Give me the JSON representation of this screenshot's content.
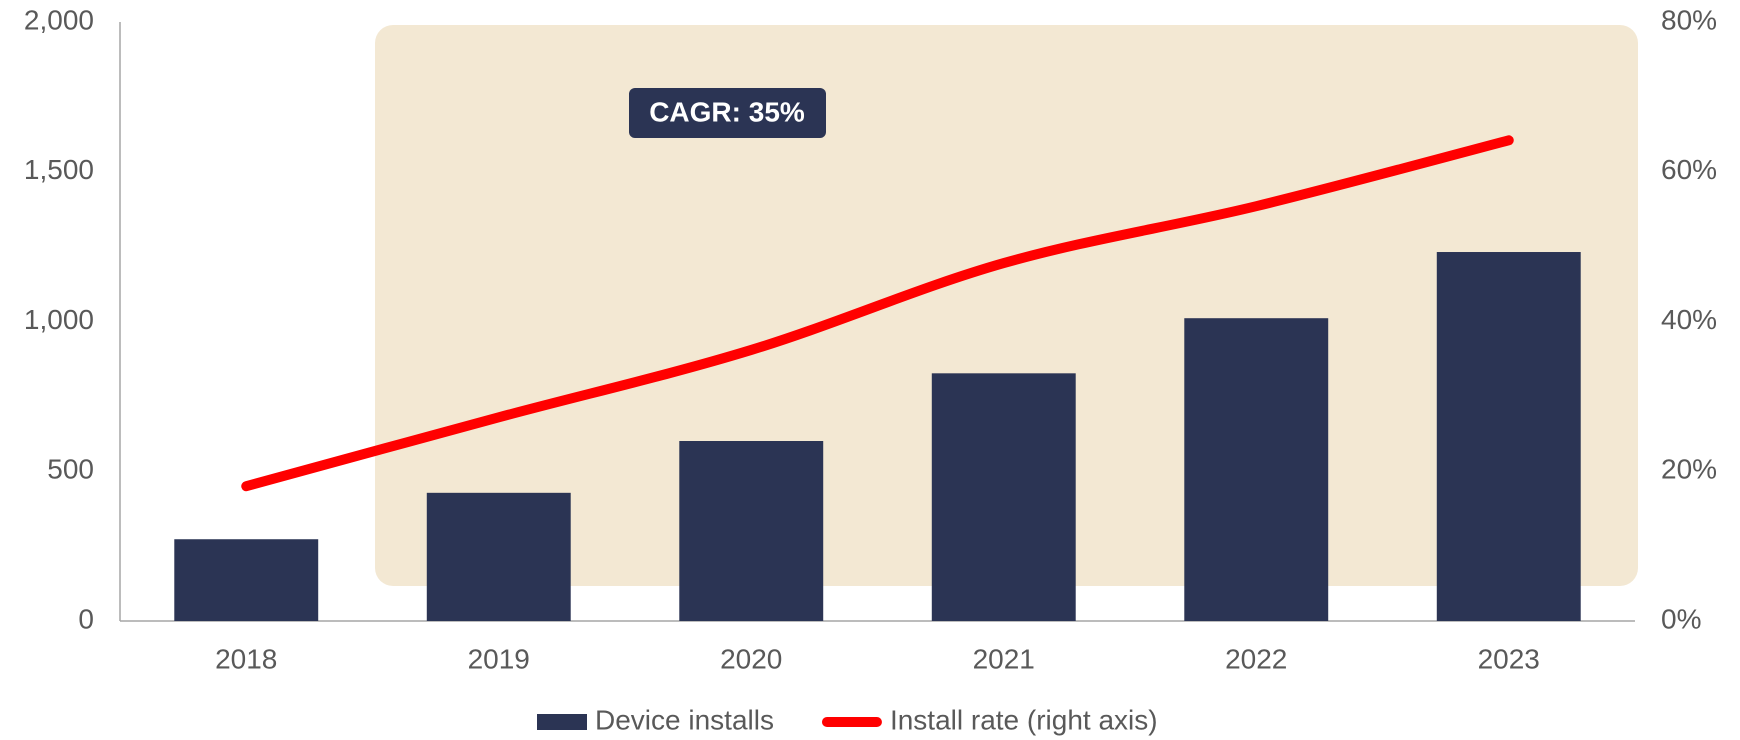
{
  "chart_data": {
    "type": "bar",
    "annotation": "CAGR: 35%",
    "categories": [
      "2018",
      "2019",
      "2020",
      "2021",
      "2022",
      "2023"
    ],
    "series": [
      {
        "name": "Device installs",
        "color": "#2b3454",
        "type": "bar",
        "values": [
          273,
          428,
          601,
          827,
          1011,
          1232
        ]
      },
      {
        "name": "Install rate (right axis)",
        "color": "#ff0000",
        "type": "line",
        "axis": "y2",
        "values": [
          18,
          27.2,
          36.2,
          47.8,
          55.4,
          64.2
        ]
      }
    ],
    "ylim": [
      0,
      2000
    ],
    "yticks": [
      0,
      500,
      {
        "value": 1000,
        "label": "1,000"
      },
      {
        "value": 1500,
        "label": "1,500"
      },
      {
        "value": 2000,
        "label": "2,000"
      }
    ],
    "y2lim": [
      0,
      80
    ],
    "y2ticks": [
      {
        "value": 0,
        "label": "0%"
      },
      {
        "value": 20,
        "label": "20%"
      },
      {
        "value": 40,
        "label": "40%"
      },
      {
        "value": 60,
        "label": "60%"
      },
      {
        "value": 80,
        "label": "80%"
      }
    ],
    "grid": false,
    "legend": "bottom"
  }
}
